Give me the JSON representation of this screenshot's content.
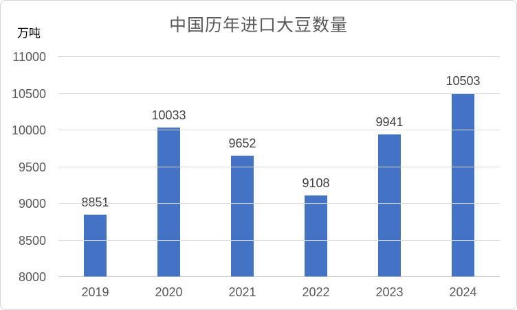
{
  "chart_data": {
    "type": "bar",
    "title": "中国历年进口大豆数量",
    "unit_label": "万吨",
    "xlabel": "",
    "ylabel": "万吨",
    "categories": [
      "2019",
      "2020",
      "2021",
      "2022",
      "2023",
      "2024"
    ],
    "values": [
      8851,
      10033,
      9652,
      9108,
      9941,
      10503
    ],
    "value_labels": [
      "8851",
      "10033",
      "9652",
      "9108",
      "9941",
      "10503"
    ],
    "ylim": [
      8000,
      11000
    ],
    "ytick_step": 500,
    "yticks": [
      8000,
      8500,
      9000,
      9500,
      10000,
      10500,
      11000
    ],
    "grid": true,
    "legend": false,
    "colors": {
      "bar": "#4472C4",
      "title_text": "#595959",
      "axis_text": "#595959",
      "value_label_text": "#404040",
      "unit_label_text": "#000000",
      "gridline": "#D9D9D9",
      "axis_line": "#BFBFBF",
      "frame_border": "#D5D5D5",
      "background": "#FFFFFF"
    }
  }
}
